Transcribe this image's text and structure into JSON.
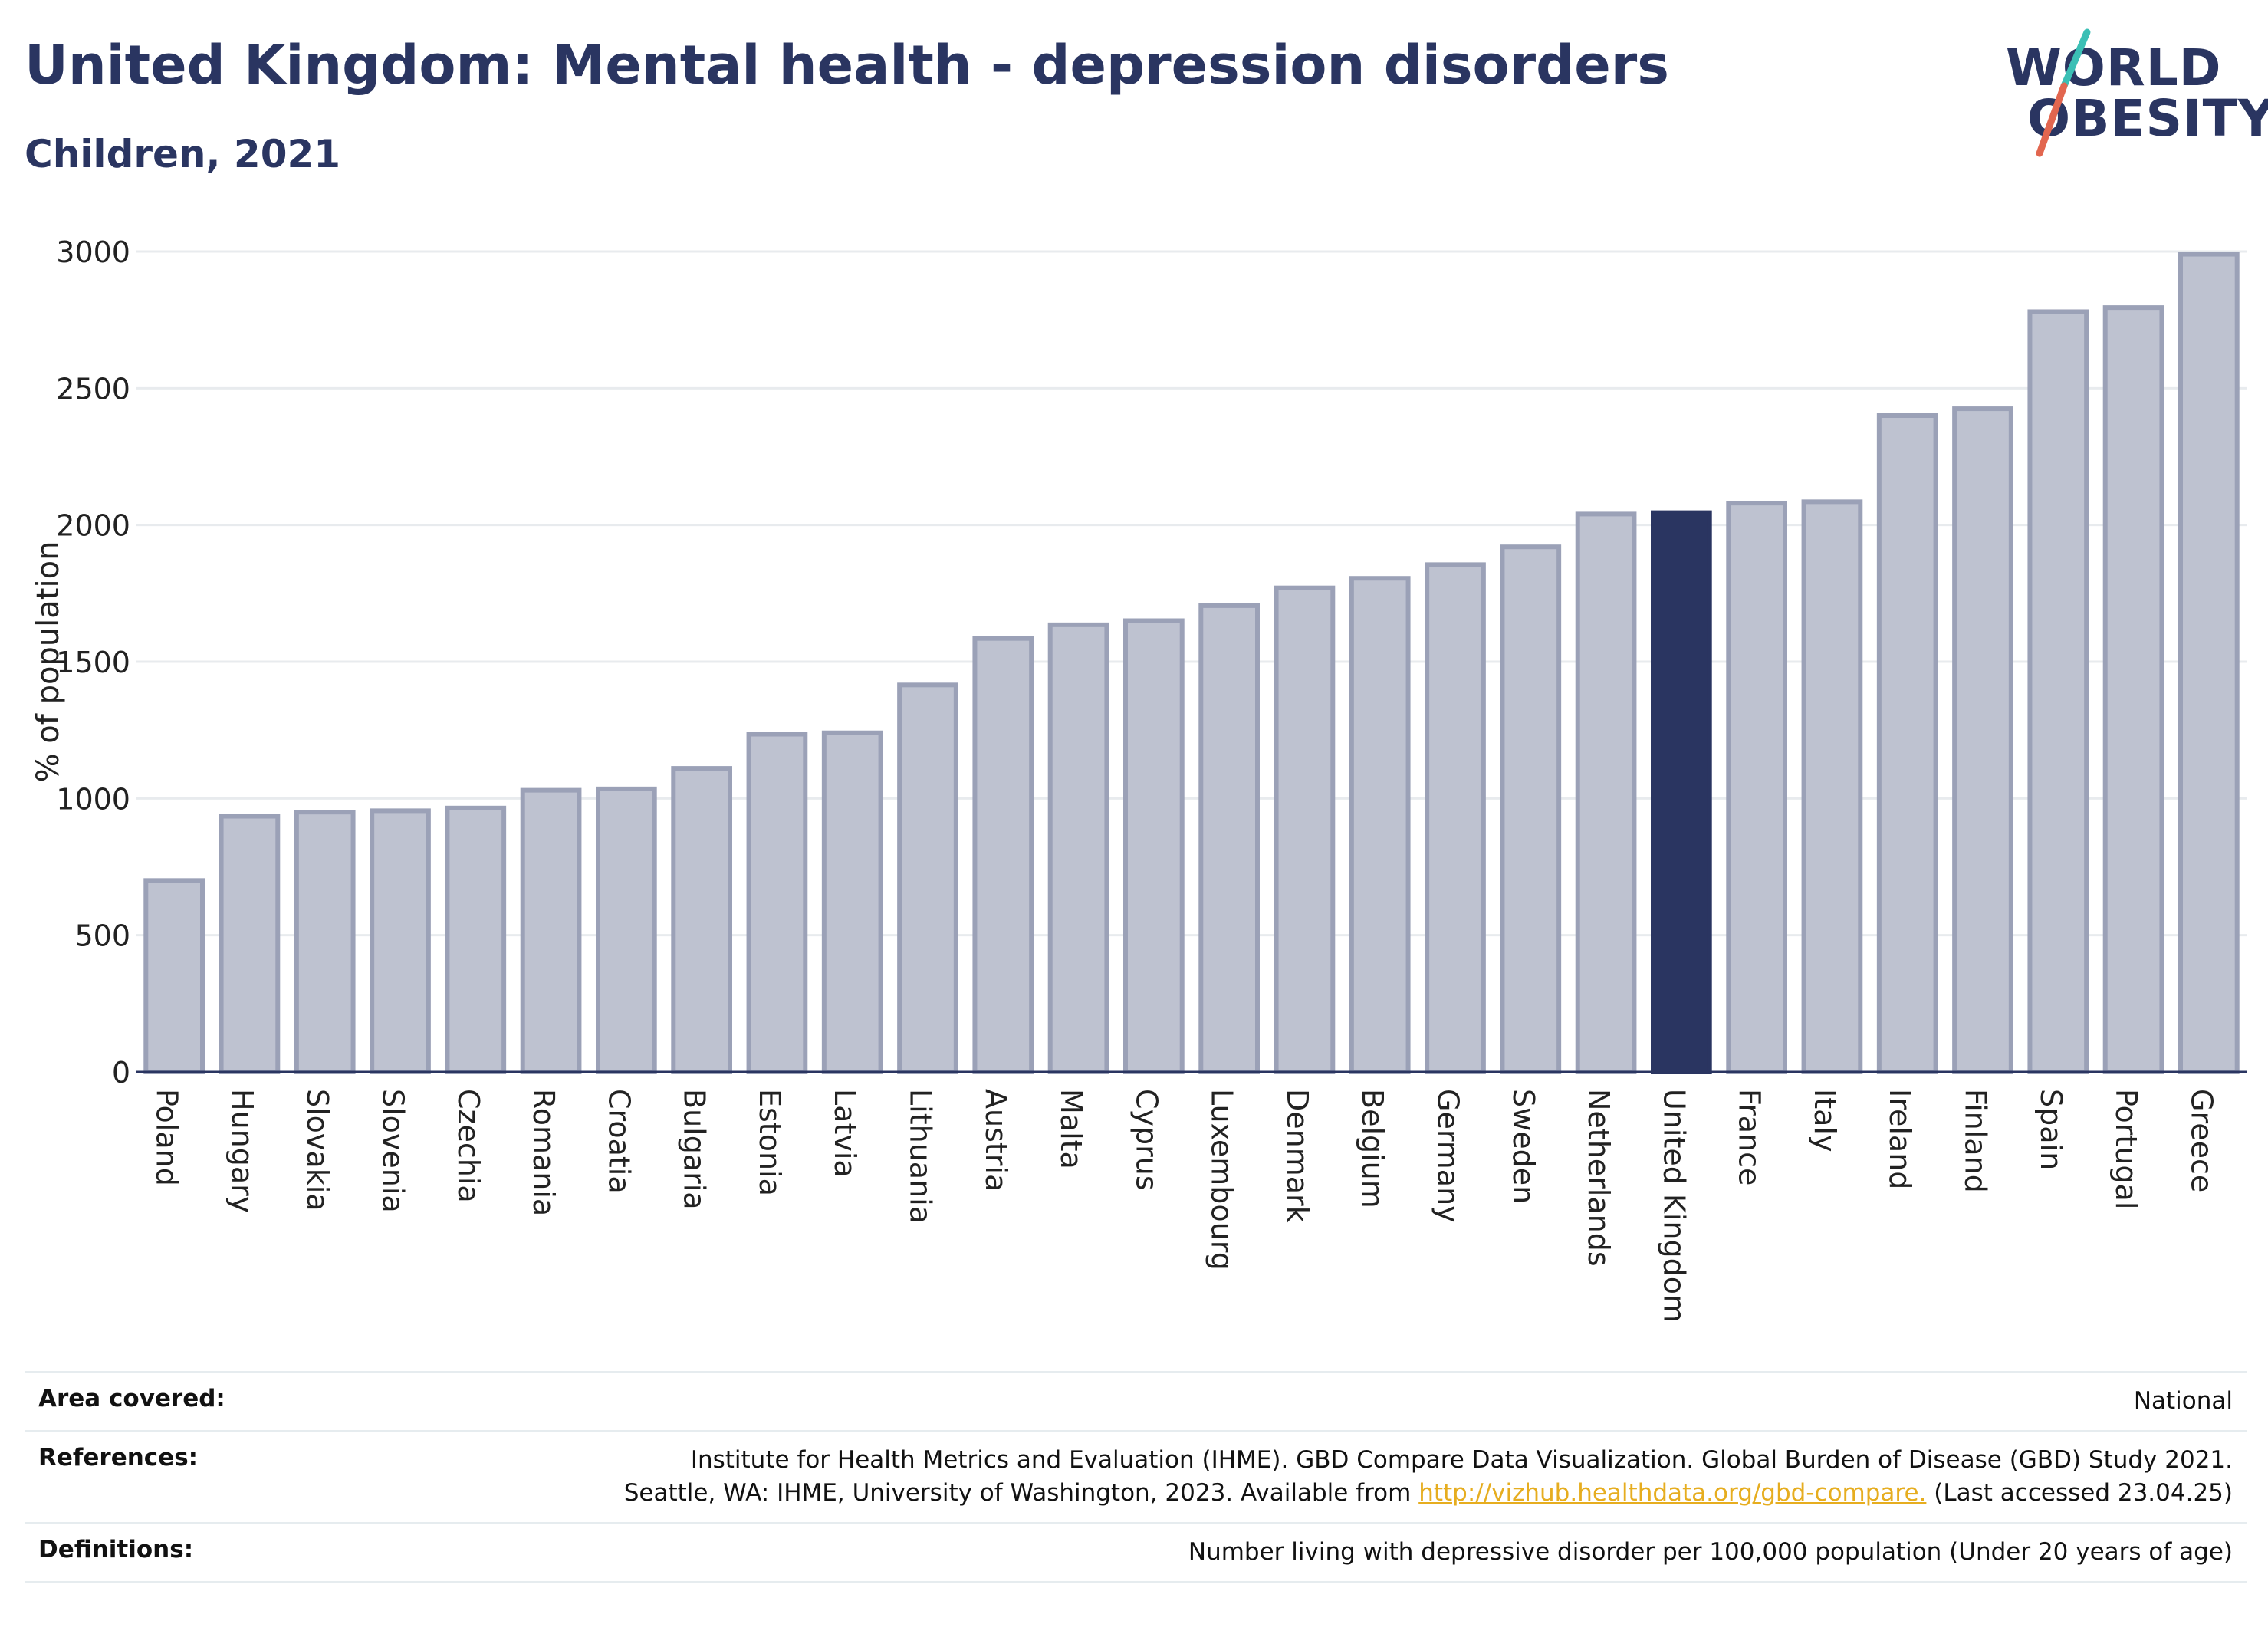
{
  "header": {
    "title": "United Kingdom: Mental health - depression disorders",
    "subtitle": "Children, 2021"
  },
  "logo": {
    "line1": "WORLD",
    "line2": "OBESITY"
  },
  "chart_data": {
    "type": "bar",
    "ylabel": "% of population",
    "xlabel": "",
    "ylim": [
      0,
      3000
    ],
    "yticks": [
      0,
      500,
      1000,
      1500,
      2000,
      2500,
      3000
    ],
    "grid": true,
    "legend": "none",
    "highlight": "United Kingdom",
    "categories": [
      "Poland",
      "Hungary",
      "Slovakia",
      "Slovenia",
      "Czechia",
      "Romania",
      "Croatia",
      "Bulgaria",
      "Estonia",
      "Latvia",
      "Lithuania",
      "Austria",
      "Malta",
      "Cyprus",
      "Luxembourg",
      "Denmark",
      "Belgium",
      "Germany",
      "Sweden",
      "Netherlands",
      "United Kingdom",
      "France",
      "Italy",
      "Ireland",
      "Finland",
      "Spain",
      "Portugal",
      "Greece"
    ],
    "values": [
      700,
      935,
      950,
      955,
      965,
      1030,
      1035,
      1110,
      1235,
      1240,
      1415,
      1585,
      1635,
      1650,
      1705,
      1770,
      1805,
      1855,
      1920,
      2040,
      2045,
      2080,
      2085,
      2400,
      2425,
      2780,
      2795,
      2990
    ],
    "colors": {
      "bar": "#bec2d0",
      "bar_border": "#9ba1b7",
      "highlight": "#2a3561",
      "grid": "#e8ebee",
      "axis": "#2a3561"
    }
  },
  "info": {
    "area_label": "Area covered:",
    "area_value": "National",
    "references_label": "References:",
    "references_line1": "Institute for Health Metrics and Evaluation (IHME). GBD Compare Data Visualization. Global Burden of Disease (GBD) Study 2021.",
    "references_line2_prefix": "Seattle, WA: IHME, University of Washington, 2023. Available from",
    "references_link": "http://vizhub.healthdata.org/gbd-compare.",
    "references_line2_suffix": "(Last accessed 23.04.25)",
    "definitions_label": "Definitions:",
    "definitions_value": "Number living with depressive disorder per 100,000 population (Under 20 years of age)"
  }
}
